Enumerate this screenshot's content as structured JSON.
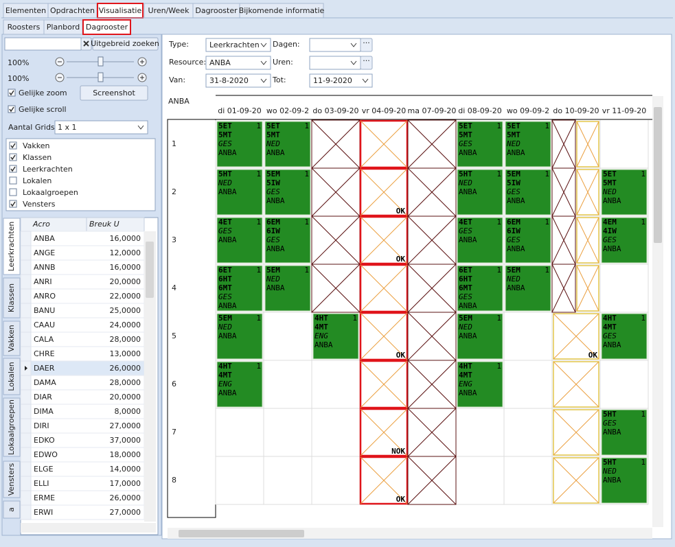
{
  "tabs": {
    "main": [
      "Elementen",
      "Opdrachten",
      "Visualisatie",
      "Uren/Week",
      "Dagrooster",
      "Bijkomende informatie"
    ],
    "sub": [
      "Roosters",
      "Planbord",
      "Dagrooster"
    ]
  },
  "left": {
    "search_button": "Uitgebreid zoeken",
    "zoom": [
      "100%",
      "100%"
    ],
    "options": [
      {
        "label": "Gelijke zoom",
        "checked": true
      },
      {
        "label": "Gelijke scroll",
        "checked": true
      }
    ],
    "screenshot_button": "Screenshot",
    "grids": {
      "label": "Aantal Grids",
      "value": "1 x 1"
    },
    "layers": [
      {
        "label": "Vakken",
        "checked": true
      },
      {
        "label": "Klassen",
        "checked": true
      },
      {
        "label": "Leerkrachten",
        "checked": true
      },
      {
        "label": "Lokalen",
        "checked": false
      },
      {
        "label": "Lokaalgroepen",
        "checked": false
      },
      {
        "label": "Vensters",
        "checked": true
      }
    ],
    "side_tabs": [
      "Leerkrachten",
      "Klassen",
      "Vakken",
      "Lokalen",
      "Lokaalgroepen",
      "Vensters",
      "a"
    ],
    "grid": {
      "columns": [
        "Acro",
        "Breuk U"
      ],
      "rows": [
        [
          "ANBA",
          "16,0000"
        ],
        [
          "ANGE",
          "12,0000"
        ],
        [
          "ANNB",
          "16,0000"
        ],
        [
          "ANRI",
          "20,0000"
        ],
        [
          "ANRO",
          "22,0000"
        ],
        [
          "BANU",
          "25,0000"
        ],
        [
          "CAAU",
          "24,0000"
        ],
        [
          "CALA",
          "28,0000"
        ],
        [
          "CHRE",
          "13,0000"
        ],
        [
          "DAER",
          "26,0000"
        ],
        [
          "DAMA",
          "28,0000"
        ],
        [
          "DIAR",
          "20,0000"
        ],
        [
          "DIMA",
          "8,0000"
        ],
        [
          "DIRI",
          "27,0000"
        ],
        [
          "EDKO",
          "37,0000"
        ],
        [
          "EDWO",
          "18,0000"
        ],
        [
          "ELGE",
          "14,0000"
        ],
        [
          "ELLI",
          "17,0000"
        ],
        [
          "ERME",
          "26,0000"
        ],
        [
          "ERWI",
          "27,0000"
        ]
      ]
    }
  },
  "form": {
    "type": {
      "label": "Type:",
      "value": "Leerkrachten"
    },
    "resource": {
      "label": "Resource:",
      "value": "ANBA"
    },
    "van": {
      "label": "Van:",
      "value": "31-8-2020"
    },
    "dagen": {
      "label": "Dagen:"
    },
    "uren": {
      "label": "Uren:"
    },
    "tot": {
      "label": "Tot:",
      "value": "11-9-2020"
    }
  },
  "schedule": {
    "resource": "ANBA",
    "days": [
      "di 01-09-20",
      "wo 02-09-2",
      "do 03-09-20",
      "vr 04-09-20",
      "ma 07-09-20",
      "di 08-09-20",
      "wo 09-09-2",
      "do 10-09-20",
      "vr 11-09-20"
    ],
    "hours": [
      "1",
      "2",
      "3",
      "4",
      "5",
      "6",
      "7",
      "8"
    ],
    "cells": [
      [
        {
          "classes": [
            "5ET",
            "5MT"
          ],
          "subject": "GES",
          "teacher": "ANBA",
          "count": "1"
        },
        {
          "classes": [
            "5HT"
          ],
          "subject": "NED",
          "teacher": "ANBA",
          "count": "1"
        },
        {
          "classes": [
            "4ET"
          ],
          "subject": "GES",
          "teacher": "ANBA",
          "count": "1"
        },
        {
          "classes": [
            "6ET",
            "6HT",
            "6MT"
          ],
          "subject": "GES",
          "teacher": "ANBA",
          "count": "1"
        },
        {
          "classes": [
            "5EM"
          ],
          "subject": "NED",
          "teacher": "ANBA",
          "count": "1"
        },
        {
          "classes": [
            "4HT",
            "4MT"
          ],
          "subject": "ENG",
          "teacher": "ANBA",
          "count": "1"
        },
        null,
        null
      ],
      [
        {
          "classes": [
            "5ET",
            "5MT"
          ],
          "subject": "NED",
          "teacher": "ANBA",
          "count": "1"
        },
        {
          "classes": [
            "5EM",
            "5IW"
          ],
          "subject": "GES",
          "teacher": "ANBA",
          "count": "1"
        },
        {
          "classes": [
            "6EM",
            "6IW"
          ],
          "subject": "GES",
          "teacher": "ANBA",
          "count": "1"
        },
        {
          "classes": [
            "5EM"
          ],
          "subject": "NED",
          "teacher": "ANBA",
          "count": "1"
        },
        null,
        null,
        null,
        null
      ],
      [
        {
          "cross": "dark"
        },
        {
          "cross": "dark"
        },
        {
          "cross": "dark"
        },
        {
          "cross": "dark"
        },
        {
          "classes": [
            "4HT",
            "4MT"
          ],
          "subject": "ENG",
          "teacher": "ANBA",
          "count": "1"
        },
        null,
        null,
        null
      ],
      [
        {
          "cross": "red"
        },
        {
          "cross": "red",
          "status": "OK"
        },
        {
          "cross": "red",
          "status": "OK"
        },
        {
          "cross": "red"
        },
        {
          "cross": "red",
          "status": "OK"
        },
        {
          "cross": "red"
        },
        {
          "cross": "red",
          "status": "NOK"
        },
        {
          "cross": "red",
          "status": "OK"
        }
      ],
      [
        {
          "cross": "dark"
        },
        {
          "cross": "dark"
        },
        {
          "cross": "dark"
        },
        {
          "cross": "dark"
        },
        {
          "cross": "dark"
        },
        {
          "cross": "dark"
        },
        {
          "cross": "dark"
        },
        {
          "cross": "dark"
        }
      ],
      [
        {
          "classes": [
            "5ET",
            "5MT"
          ],
          "subject": "GES",
          "teacher": "ANBA",
          "count": "1"
        },
        {
          "classes": [
            "5HT"
          ],
          "subject": "NED",
          "teacher": "ANBA",
          "count": "1"
        },
        {
          "classes": [
            "4ET"
          ],
          "subject": "GES",
          "teacher": "ANBA",
          "count": "1"
        },
        {
          "classes": [
            "6ET",
            "6HT",
            "6MT"
          ],
          "subject": "GES",
          "teacher": "ANBA",
          "count": "1"
        },
        {
          "classes": [
            "5EM"
          ],
          "subject": "NED",
          "teacher": "ANBA",
          "count": "1"
        },
        {
          "classes": [
            "4HT",
            "4MT"
          ],
          "subject": "ENG",
          "teacher": "ANBA",
          "count": "1"
        },
        null,
        null
      ],
      [
        {
          "classes": [
            "5ET",
            "5MT"
          ],
          "subject": "NED",
          "teacher": "ANBA",
          "count": "1"
        },
        {
          "classes": [
            "5EM",
            "5IW"
          ],
          "subject": "GES",
          "teacher": "ANBA",
          "count": "1"
        },
        {
          "classes": [
            "6EM",
            "6IW"
          ],
          "subject": "GES",
          "teacher": "ANBA",
          "count": "1"
        },
        {
          "classes": [
            "5EM"
          ],
          "subject": "NED",
          "teacher": "ANBA",
          "count": "1"
        },
        null,
        null,
        null,
        null
      ],
      [
        {
          "cross": "split"
        },
        {
          "cross": "split"
        },
        {
          "cross": "split"
        },
        {
          "cross": "split"
        },
        {
          "cross": "yellow",
          "status": "OK"
        },
        {
          "cross": "yellow"
        },
        {
          "cross": "yellow"
        },
        {
          "cross": "yellow"
        }
      ],
      [
        null,
        {
          "classes": [
            "5ET",
            "5MT"
          ],
          "subject": "NED",
          "teacher": "ANBA",
          "count": "1"
        },
        {
          "classes": [
            "4EM",
            "4IW"
          ],
          "subject": "GES",
          "teacher": "ANBA",
          "count": "1"
        },
        null,
        {
          "classes": [
            "4HT",
            "4MT"
          ],
          "subject": "GES",
          "teacher": "ANBA",
          "count": "1"
        },
        null,
        {
          "classes": [
            "5HT"
          ],
          "subject": "GES",
          "teacher": "ANBA",
          "count": "1"
        },
        {
          "classes": [
            "5HT"
          ],
          "subject": "NED",
          "teacher": "ANBA",
          "count": "1"
        }
      ]
    ]
  }
}
